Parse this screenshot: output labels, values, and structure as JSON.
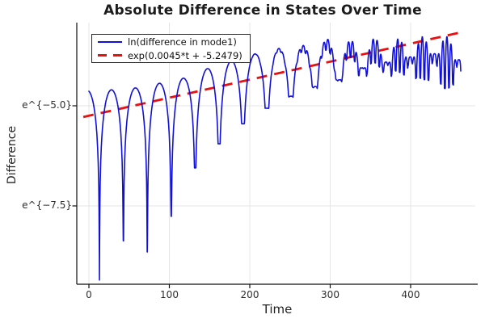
{
  "chart_data": {
    "type": "line",
    "title": "Absolute Difference in States Over Time",
    "x_axis": {
      "label": "Time",
      "ticks": [
        {
          "label": "0",
          "value": 0
        },
        {
          "label": "100",
          "value": 100
        },
        {
          "label": "200",
          "value": 200
        },
        {
          "label": "300",
          "value": 300
        },
        {
          "label": "400",
          "value": 400
        }
      ],
      "range": [
        -15,
        483
      ]
    },
    "y_axis": {
      "label": "Difference",
      "scale": "ln",
      "ticks": [
        {
          "label": "e^{−5.0}",
          "ln": -5.0
        },
        {
          "label": "e^{−7.5}",
          "ln": -7.5
        }
      ],
      "range_ln": [
        -9.46,
        -2.92
      ]
    },
    "grid": true,
    "legend_position": "top-left",
    "legend": [
      "ln(difference in mode1)",
      "exp(0.0045*t + -5.2479)"
    ],
    "series": [
      {
        "name": "ln(difference in mode1)",
        "color_key": "blue",
        "style": "solid",
        "model": {
          "description": "ln of oscillating mode difference: arches of |sin| under a rising envelope, cusps at zero crossings",
          "period": 29.75,
          "first_zero_t": 13.1,
          "t_start": 0,
          "t_end": 462.5,
          "peak_envelope_ln": [
            [
              0,
              -4.62
            ],
            [
              30,
              -4.6
            ],
            [
              60,
              -4.55
            ],
            [
              90,
              -4.43
            ],
            [
              120,
              -4.3
            ],
            [
              150,
              -4.05
            ],
            [
              180,
              -3.86
            ],
            [
              205,
              -3.71
            ],
            [
              235,
              -3.57
            ],
            [
              265,
              -3.5
            ],
            [
              296,
              -3.33
            ],
            [
              327,
              -3.37
            ],
            [
              357,
              -3.31
            ],
            [
              387,
              -3.33
            ],
            [
              417,
              -3.27
            ],
            [
              449,
              -3.27
            ],
            [
              470,
              -3.22
            ]
          ],
          "zero_dip_depths_ln": [
            -9.35,
            -8.37,
            -8.65,
            -7.76,
            -6.55,
            -5.95,
            -5.45,
            -5.06,
            -4.76,
            -4.52,
            -4.35,
            -4.05,
            -3.91,
            -3.78,
            -3.7,
            -3.85
          ],
          "ripple": {
            "start_t": 190,
            "full_t": 460,
            "period": 10.2,
            "phase": 0.7,
            "min_sin": 0.32,
            "max_depth_ln": 1.15
          }
        }
      },
      {
        "name": "exp(0.0045*t + -5.2479)",
        "color_key": "red",
        "style": "dashed",
        "model": {
          "slope": 0.0045,
          "intercept": -5.2479,
          "t_start": -7,
          "t_end": 466,
          "dash": [
            13,
            9
          ]
        }
      }
    ],
    "colors": {
      "blue": "#1010d8",
      "red": "#ea1010",
      "grid": "#e4e4e4",
      "axis": "#111111",
      "text": "#2e2e2e",
      "background": "#ffffff"
    }
  }
}
